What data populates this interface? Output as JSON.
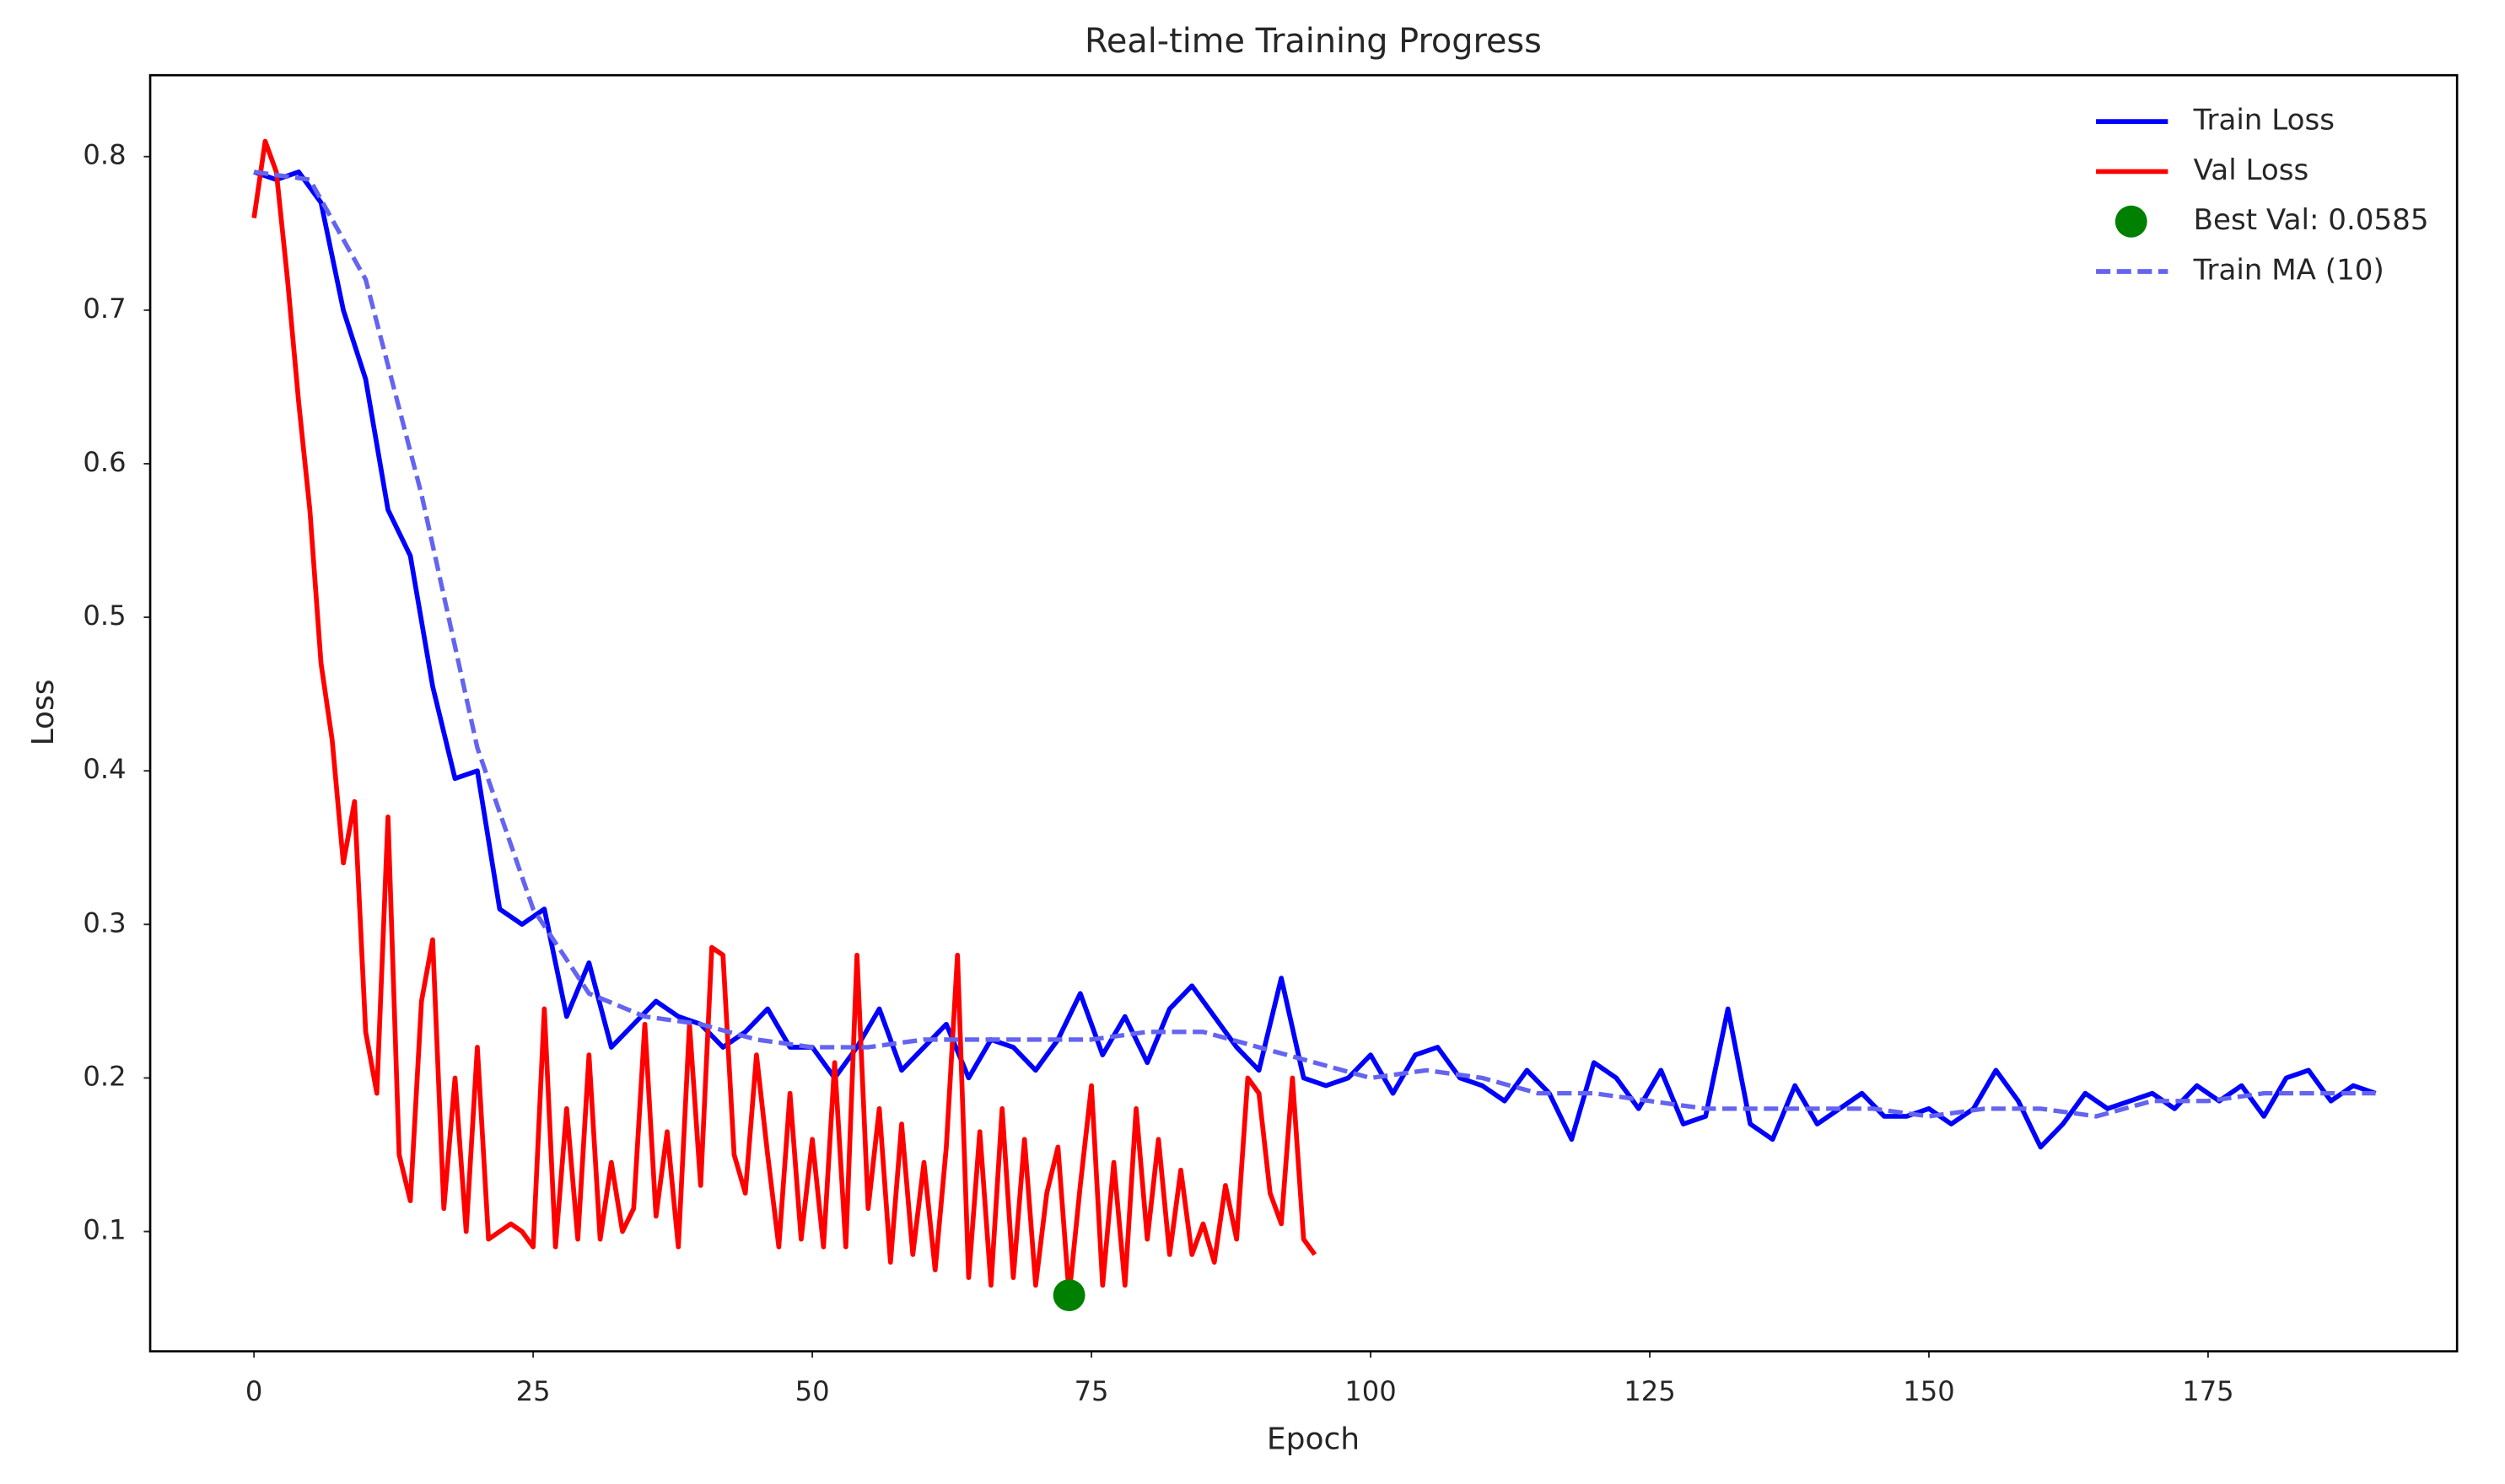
{
  "chart_data": {
    "type": "line",
    "title": "Real-time Training Progress",
    "xlabel": "Epoch",
    "ylabel": "Loss",
    "xlim": [
      -9.3,
      197.3
    ],
    "ylim": [
      0.022,
      0.853
    ],
    "xticks": [
      0,
      25,
      50,
      75,
      100,
      125,
      150,
      175
    ],
    "yticks": [
      0.1,
      0.2,
      0.3,
      0.4,
      0.5,
      0.6,
      0.7,
      0.8
    ],
    "grid": false,
    "legend": "upper right",
    "series": [
      {
        "name": "Train Loss",
        "color": "#0000ff",
        "style": "solid",
        "x": [
          0,
          2,
          4,
          6,
          8,
          10,
          12,
          14,
          16,
          18,
          20,
          22,
          24,
          26,
          28,
          30,
          32,
          34,
          36,
          38,
          40,
          42,
          44,
          46,
          48,
          50,
          52,
          54,
          56,
          58,
          60,
          62,
          64,
          66,
          68,
          70,
          72,
          74,
          76,
          78,
          80,
          82,
          84,
          86,
          88,
          90,
          92,
          94,
          96,
          98,
          100,
          102,
          104,
          106,
          108,
          110,
          112,
          114,
          116,
          118,
          120,
          122,
          124,
          126,
          128,
          130,
          132,
          134,
          136,
          138,
          140,
          142,
          144,
          146,
          148,
          150,
          152,
          154,
          156,
          158,
          160,
          162,
          164,
          166,
          168,
          170,
          172,
          174,
          176,
          178,
          180,
          182,
          184,
          186,
          188,
          190
        ],
        "values": [
          0.79,
          0.785,
          0.79,
          0.77,
          0.7,
          0.655,
          0.57,
          0.54,
          0.455,
          0.395,
          0.4,
          0.31,
          0.3,
          0.31,
          0.24,
          0.275,
          0.22,
          0.235,
          0.25,
          0.24,
          0.235,
          0.22,
          0.23,
          0.245,
          0.22,
          0.22,
          0.2,
          0.22,
          0.245,
          0.205,
          0.22,
          0.235,
          0.2,
          0.225,
          0.22,
          0.205,
          0.225,
          0.255,
          0.215,
          0.24,
          0.21,
          0.245,
          0.26,
          0.24,
          0.22,
          0.205,
          0.265,
          0.2,
          0.195,
          0.2,
          0.215,
          0.19,
          0.215,
          0.22,
          0.2,
          0.195,
          0.185,
          0.205,
          0.19,
          0.16,
          0.21,
          0.2,
          0.18,
          0.205,
          0.17,
          0.175,
          0.245,
          0.17,
          0.16,
          0.195,
          0.17,
          0.18,
          0.19,
          0.175,
          0.175,
          0.18,
          0.17,
          0.18,
          0.205,
          0.185,
          0.155,
          0.17,
          0.19,
          0.18,
          0.185,
          0.19,
          0.18,
          0.195,
          0.185,
          0.195,
          0.175,
          0.2,
          0.205,
          0.185,
          0.195,
          0.19
        ]
      },
      {
        "name": "Val Loss",
        "color": "#ff0000",
        "style": "solid",
        "x": [
          0,
          1,
          2,
          3,
          4,
          5,
          6,
          7,
          8,
          9,
          10,
          11,
          12,
          13,
          14,
          15,
          16,
          17,
          18,
          19,
          20,
          21,
          22,
          23,
          24,
          25,
          26,
          27,
          28,
          29,
          30,
          31,
          32,
          33,
          34,
          35,
          36,
          37,
          38,
          39,
          40,
          41,
          42,
          43,
          44,
          45,
          46,
          47,
          48,
          49,
          50,
          51,
          52,
          53,
          54,
          55,
          56,
          57,
          58,
          59,
          60,
          61,
          62,
          63,
          64,
          65,
          66,
          67,
          68,
          69,
          70,
          71,
          72,
          73,
          74,
          75,
          76,
          77,
          78,
          79,
          80,
          81,
          82,
          83,
          84,
          85,
          86,
          87,
          88,
          89,
          90,
          91,
          92,
          93,
          94,
          95
        ],
        "values": [
          0.76,
          0.81,
          0.79,
          0.72,
          0.64,
          0.57,
          0.47,
          0.42,
          0.34,
          0.38,
          0.23,
          0.19,
          0.37,
          0.15,
          0.12,
          0.25,
          0.29,
          0.115,
          0.2,
          0.1,
          0.22,
          0.095,
          0.1,
          0.105,
          0.1,
          0.09,
          0.245,
          0.09,
          0.18,
          0.095,
          0.215,
          0.095,
          0.145,
          0.1,
          0.115,
          0.235,
          0.11,
          0.165,
          0.09,
          0.235,
          0.13,
          0.285,
          0.28,
          0.15,
          0.125,
          0.215,
          0.15,
          0.09,
          0.19,
          0.095,
          0.16,
          0.09,
          0.21,
          0.09,
          0.28,
          0.115,
          0.18,
          0.08,
          0.17,
          0.085,
          0.145,
          0.075,
          0.155,
          0.28,
          0.07,
          0.165,
          0.065,
          0.18,
          0.07,
          0.16,
          0.065,
          0.125,
          0.155,
          0.0585,
          0.13,
          0.195,
          0.065,
          0.145,
          0.065,
          0.18,
          0.095,
          0.16,
          0.085,
          0.14,
          0.085,
          0.105,
          0.08,
          0.13,
          0.095,
          0.2,
          0.19,
          0.125,
          0.105,
          0.2,
          0.095,
          0.085
        ]
      },
      {
        "name": "Best Val: 0.0585",
        "color": "#008000",
        "style": "marker",
        "x": [
          73
        ],
        "values": [
          0.0585
        ]
      },
      {
        "name": "Train MA (10)",
        "color": "#6464f0",
        "style": "dashed",
        "x": [
          0,
          5,
          10,
          15,
          20,
          25,
          30,
          35,
          40,
          45,
          50,
          55,
          60,
          65,
          70,
          75,
          80,
          85,
          90,
          95,
          100,
          105,
          110,
          115,
          120,
          125,
          130,
          135,
          140,
          145,
          150,
          155,
          160,
          165,
          170,
          175,
          180,
          185,
          190
        ],
        "values": [
          0.79,
          0.785,
          0.72,
          0.58,
          0.415,
          0.31,
          0.255,
          0.24,
          0.235,
          0.225,
          0.22,
          0.22,
          0.225,
          0.225,
          0.225,
          0.225,
          0.23,
          0.23,
          0.22,
          0.21,
          0.2,
          0.205,
          0.2,
          0.19,
          0.19,
          0.185,
          0.18,
          0.18,
          0.18,
          0.18,
          0.175,
          0.18,
          0.18,
          0.175,
          0.185,
          0.185,
          0.19,
          0.19,
          0.19
        ]
      }
    ]
  }
}
